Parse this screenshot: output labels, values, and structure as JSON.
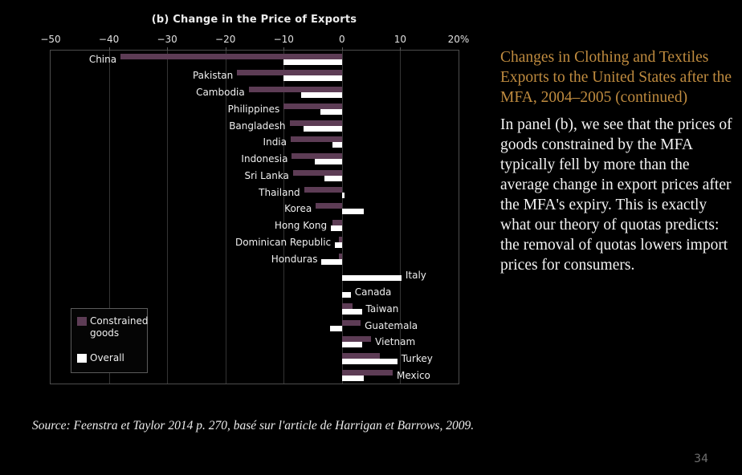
{
  "slide": {
    "page_number": "34",
    "source_line": "Source: Feenstra et Taylor 2014 p. 270, basé sur l'article de Harrigan et Barrows, 2009."
  },
  "side_panel": {
    "heading": "Changes in Clothing and Textiles Exports to the United States after the MFA, 2004–2005 (continued)",
    "body": "In panel (b), we see that the prices of goods constrained by the MFA typically fell by more than the average change in export prices after the MFA's expiry. This is exactly what our theory of quotas predicts: the removal of quotas lowers import prices for consumers."
  },
  "chart_data": {
    "type": "bar",
    "orientation": "horizontal",
    "title": "(b) Change in the Price of Exports",
    "xlim": [
      -50,
      20
    ],
    "x_ticks": [
      -50,
      -40,
      -30,
      -20,
      -10,
      0,
      10,
      20
    ],
    "x_tick_labels": [
      "−50",
      "−40",
      "−30",
      "−20",
      "−10",
      "0",
      "10",
      "20%"
    ],
    "grid": true,
    "unit": "percent",
    "legend_position": "lower-left",
    "legend": [
      {
        "name": "Constrained goods",
        "color": "#5d3c55"
      },
      {
        "name": "Overall",
        "color": "#ffffff"
      }
    ],
    "categories": [
      "China",
      "Pakistan",
      "Cambodia",
      "Philippines",
      "Bangladesh",
      "India",
      "Indonesia",
      "Sri Lanka",
      "Thailand",
      "Korea",
      "Hong Kong",
      "Dominican Republic",
      "Honduras",
      "Italy",
      "Canada",
      "Taiwan",
      "Guatemala",
      "Vietnam",
      "Turkey",
      "Mexico"
    ],
    "series": [
      {
        "name": "Constrained goods",
        "values": [
          -38,
          -18,
          -16,
          -10,
          -9,
          -8.8,
          -8.6,
          -8.4,
          -6.5,
          -4.5,
          -1.7,
          -0.5,
          -0.5,
          null,
          null,
          1.8,
          3.2,
          5.0,
          6.5,
          8.7
        ]
      },
      {
        "name": "Overall",
        "values": [
          -10,
          -10,
          -7,
          -3.7,
          -6.6,
          -1.7,
          -4.7,
          -3.0,
          0.5,
          3.7,
          -1.9,
          -1.2,
          -3.5,
          10.2,
          1.5,
          3.4,
          -2.1,
          3.4,
          9.5,
          3.7
        ]
      }
    ]
  }
}
